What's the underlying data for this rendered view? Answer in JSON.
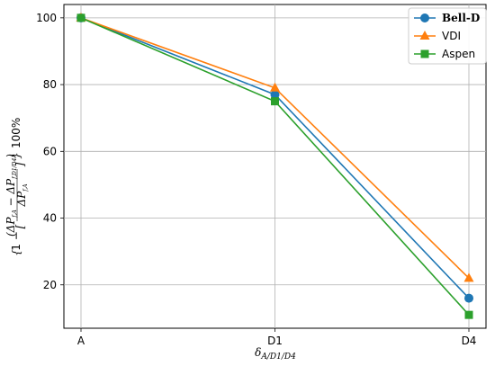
{
  "chart_data": {
    "type": "line",
    "categories": [
      "A",
      "D1",
      "D4"
    ],
    "series": [
      {
        "name": "Bell-D",
        "values": [
          100,
          77,
          16
        ],
        "color": "#1f77b4",
        "marker": "circle"
      },
      {
        "name": "VDI",
        "values": [
          100,
          79,
          22
        ],
        "color": "#ff7f0e",
        "marker": "triangle"
      },
      {
        "name": "Aspen",
        "values": [
          100,
          75,
          11
        ],
        "color": "#2ca02c",
        "marker": "square"
      }
    ],
    "xlabel": "δA/D1/D4",
    "ylabel": "{ 1 − [ (ΔPf,A − ΔPf,D1/D4) / ΔPf,A ] } 100%",
    "ylim": [
      7,
      104
    ],
    "yticks": [
      20,
      40,
      60,
      80,
      100
    ],
    "grid": true,
    "legend_position": "top-right"
  }
}
